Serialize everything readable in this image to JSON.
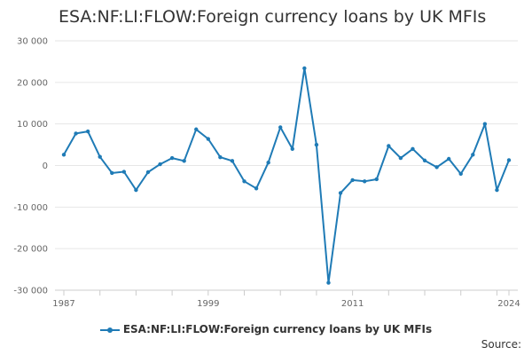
{
  "chart_data": {
    "type": "line",
    "title": "ESA:NF:LI:FLOW:Foreign currency loans by UK MFIs",
    "xlabel": "",
    "ylabel": "",
    "xlim": [
      1987,
      2024
    ],
    "ylim": [
      -30000,
      30000
    ],
    "y_ticks": [
      30000,
      20000,
      10000,
      0,
      -10000,
      -20000,
      -30000
    ],
    "y_tick_labels": [
      "30 000",
      "20 000",
      "10 000",
      "0",
      "-10 000",
      "-20 000",
      "-30 000"
    ],
    "x_tick_labels": [
      "1987",
      "1999",
      "2011",
      "2024"
    ],
    "x_tick_values": [
      1987,
      1999,
      2011,
      2024
    ],
    "grid": true,
    "legend": "bottom",
    "color": "#1f7bb6",
    "x": [
      1987,
      1988,
      1989,
      1990,
      1991,
      1992,
      1993,
      1994,
      1995,
      1996,
      1997,
      1998,
      1999,
      2000,
      2001,
      2002,
      2003,
      2004,
      2005,
      2006,
      2007,
      2008,
      2009,
      2010,
      2011,
      2012,
      2013,
      2014,
      2015,
      2016,
      2017,
      2018,
      2019,
      2020,
      2021,
      2022,
      2023,
      2024
    ],
    "series": [
      {
        "name": "ESA:NF:LI:FLOW:Foreign currency loans by UK MFIs",
        "values": [
          2600,
          7700,
          8200,
          2100,
          -1800,
          -1500,
          -5900,
          -1600,
          300,
          1800,
          1100,
          8700,
          6400,
          2000,
          1100,
          -3800,
          -5500,
          700,
          9200,
          4000,
          23400,
          5000,
          -28200,
          -6600,
          -3500,
          -3800,
          -3300,
          4700,
          1800,
          4000,
          1200,
          -400,
          1600,
          -2000,
          2600,
          10000,
          -5900,
          1300
        ]
      }
    ]
  },
  "legend": {
    "label": "ESA:NF:LI:FLOW:Foreign currency loans by UK MFIs"
  },
  "source": {
    "label": "Source:"
  }
}
